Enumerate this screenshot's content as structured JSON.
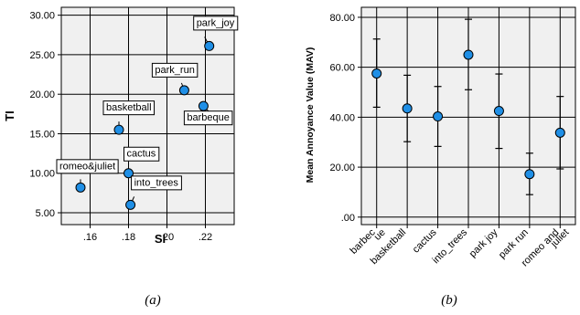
{
  "chart_data": [
    {
      "type": "scatter",
      "panel_label": "(a)",
      "xlabel": "SI",
      "ylabel": "TI",
      "xlim": [
        0.145,
        0.235
      ],
      "ylim": [
        3.5,
        31.0
      ],
      "x_ticks": [
        ".16",
        ".18",
        ".20",
        ".22"
      ],
      "x_tick_values": [
        0.16,
        0.18,
        0.2,
        0.22
      ],
      "y_ticks": [
        "5.00",
        "10.00",
        "15.00",
        "20.00",
        "25.00",
        "30.00"
      ],
      "y_tick_values": [
        5,
        10,
        15,
        20,
        25,
        30
      ],
      "grid": true,
      "point_color": "#1f8fe6",
      "points": [
        {
          "label": "park_joy",
          "x": 0.222,
          "y": 26.1
        },
        {
          "label": "park_run",
          "x": 0.209,
          "y": 20.5
        },
        {
          "label": "barbeque",
          "x": 0.219,
          "y": 18.5
        },
        {
          "label": "basketball",
          "x": 0.175,
          "y": 15.5
        },
        {
          "label": "cactus",
          "x": 0.18,
          "y": 10.0
        },
        {
          "label": "romeo&juliet",
          "x": 0.155,
          "y": 8.2
        },
        {
          "label": "into_trees",
          "x": 0.181,
          "y": 6.0
        }
      ]
    },
    {
      "type": "errorbar",
      "panel_label": "(b)",
      "ylabel": "Mean Annoyance Value (MAV)",
      "ylim": [
        -3.0,
        84.0
      ],
      "y_ticks": [
        ".00",
        "20.00",
        "40.00",
        "60.00",
        "80.00"
      ],
      "y_tick_values": [
        0,
        20,
        40,
        60,
        80
      ],
      "grid": true,
      "point_color": "#1f8fe6",
      "categories": [
        [
          "barbec",
          "ue"
        ],
        [
          "basketball"
        ],
        [
          "cactus"
        ],
        [
          "into_trees"
        ],
        [
          "park joy"
        ],
        [
          "park run"
        ],
        [
          "romeo and",
          "juliet"
        ]
      ],
      "means": [
        57.5,
        43.5,
        40.3,
        65.0,
        42.5,
        17.2,
        33.8
      ],
      "lower": [
        44.0,
        30.2,
        28.3,
        51.0,
        27.5,
        9.0,
        19.3
      ],
      "upper": [
        71.3,
        56.8,
        52.3,
        79.2,
        57.3,
        25.6,
        48.3
      ]
    }
  ]
}
